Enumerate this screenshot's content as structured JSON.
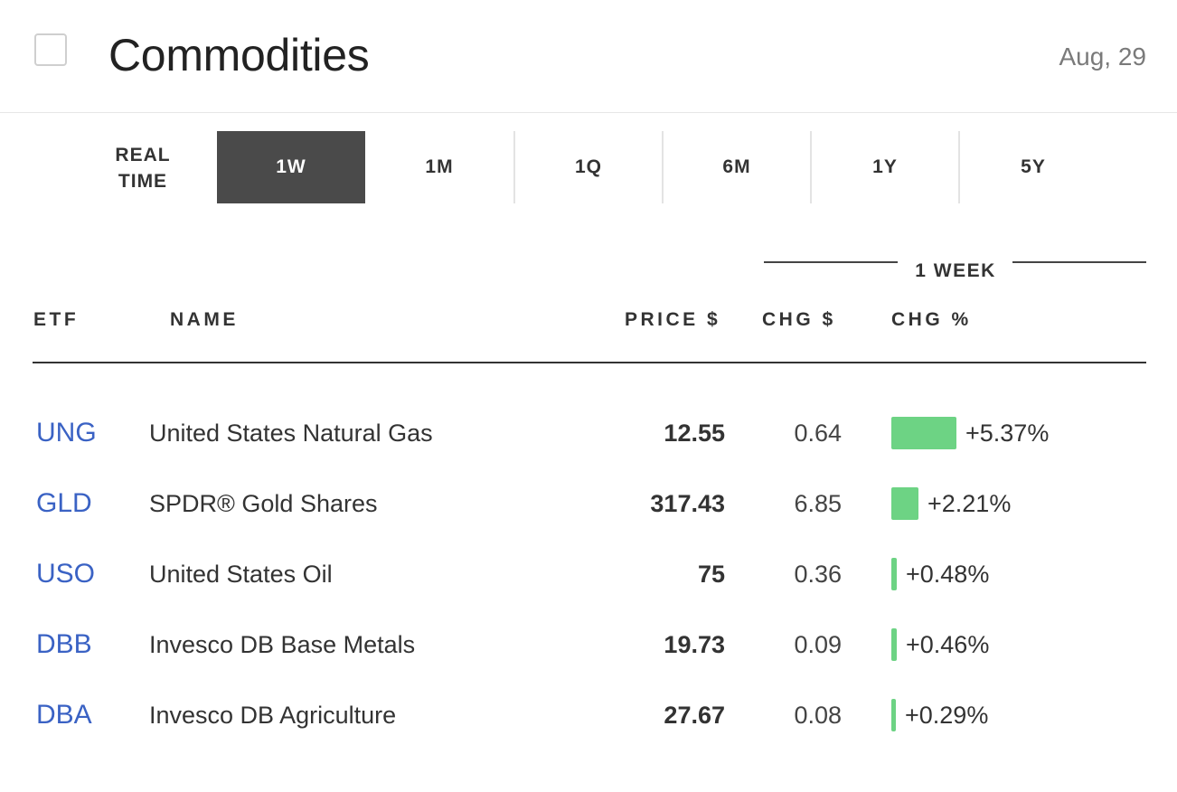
{
  "header": {
    "title": "Commodities",
    "date": "Aug, 29"
  },
  "tabs": [
    {
      "label": "REAL TIME",
      "active": false
    },
    {
      "label": "1W",
      "active": true
    },
    {
      "label": "1M",
      "active": false
    },
    {
      "label": "1Q",
      "active": false
    },
    {
      "label": "6M",
      "active": false
    },
    {
      "label": "1Y",
      "active": false
    },
    {
      "label": "5Y",
      "active": false
    }
  ],
  "table": {
    "group_label": "1 WEEK",
    "columns": {
      "etf": "ETF",
      "name": "NAME",
      "price": "PRICE $",
      "chg": "CHG $",
      "chg_pct": "CHG %"
    },
    "rows": [
      {
        "etf": "UNG",
        "name": "United States Natural Gas",
        "price": "12.55",
        "chg": "0.64",
        "chg_pct": "+5.37%",
        "pct_value": 5.37
      },
      {
        "etf": "GLD",
        "name": "SPDR® Gold Shares",
        "price": "317.43",
        "chg": "6.85",
        "chg_pct": "+2.21%",
        "pct_value": 2.21
      },
      {
        "etf": "USO",
        "name": "United States Oil",
        "price": "75",
        "chg": "0.36",
        "chg_pct": "+0.48%",
        "pct_value": 0.48
      },
      {
        "etf": "DBB",
        "name": "Invesco DB Base Metals",
        "price": "19.73",
        "chg": "0.09",
        "chg_pct": "+0.46%",
        "pct_value": 0.46
      },
      {
        "etf": "DBA",
        "name": "Invesco DB Agriculture",
        "price": "27.67",
        "chg": "0.08",
        "chg_pct": "+0.29%",
        "pct_value": 0.29
      }
    ]
  },
  "colors": {
    "accent_link": "#3a62c4",
    "positive_bar": "#6dd384",
    "active_tab": "#4a4a4a"
  }
}
